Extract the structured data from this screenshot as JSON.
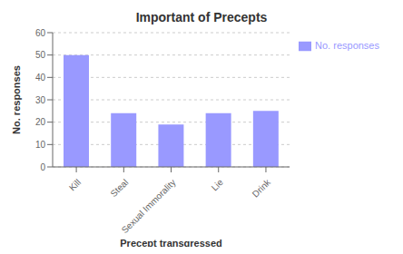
{
  "chart_data": {
    "type": "bar",
    "title": "Important of Precepts",
    "xlabel": "Precept transgressed",
    "ylabel": "No. responses",
    "categories": [
      "Kill",
      "Steal",
      "Sexual Immorality",
      "Lie",
      "Drink"
    ],
    "series": [
      {
        "name": "No. responses",
        "color": "#9999ff",
        "values": [
          50,
          24,
          19,
          24,
          25
        ]
      }
    ],
    "ylim": [
      0,
      60
    ],
    "yticks": [
      0,
      10,
      20,
      30,
      40,
      50,
      60
    ],
    "grid": true,
    "legend": "right"
  }
}
